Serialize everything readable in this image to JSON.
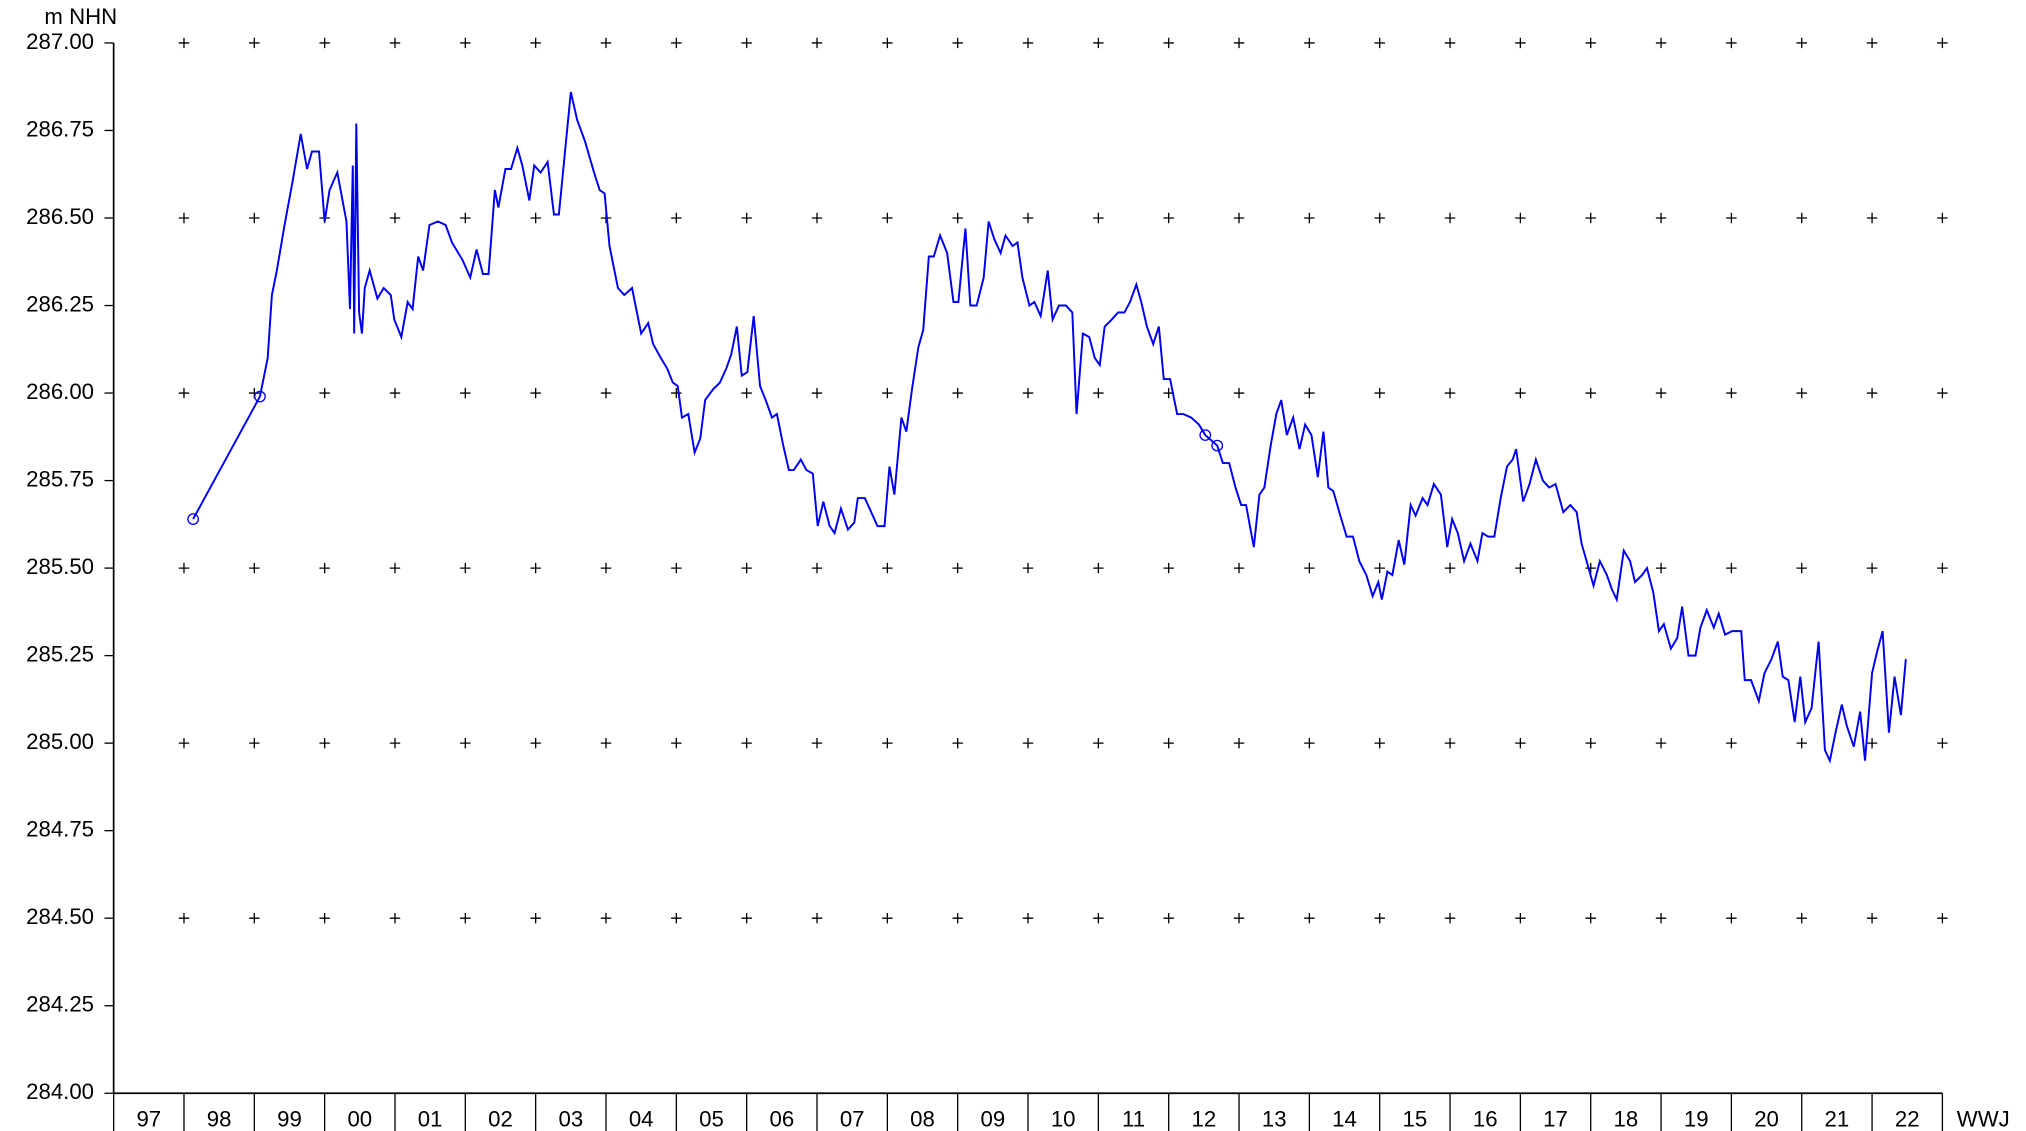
{
  "chart_data": {
    "type": "line",
    "y_label": "m NHN",
    "x_label": "WWJ",
    "categories": [
      "97",
      "98",
      "99",
      "00",
      "01",
      "02",
      "03",
      "04",
      "05",
      "06",
      "07",
      "08",
      "09",
      "10",
      "11",
      "12",
      "13",
      "14",
      "15",
      "16",
      "17",
      "18",
      "19",
      "20",
      "21",
      "22"
    ],
    "xlim": [
      1997,
      2023
    ],
    "ylim": [
      284,
      287
    ],
    "yticks": [
      {
        "value": 284,
        "label": "284.00"
      },
      {
        "value": 284.25,
        "label": "284.25"
      },
      {
        "value": 284.5,
        "label": "284.50"
      },
      {
        "value": 284.75,
        "label": "284.75"
      },
      {
        "value": 285,
        "label": "285.00"
      },
      {
        "value": 285.25,
        "label": "285.25"
      },
      {
        "value": 285.5,
        "label": "285.50"
      },
      {
        "value": 285.75,
        "label": "285.75"
      },
      {
        "value": 286,
        "label": "286.00"
      },
      {
        "value": 286.25,
        "label": "286.25"
      },
      {
        "value": 286.5,
        "label": "286.50"
      },
      {
        "value": 286.75,
        "label": "286.75"
      },
      {
        "value": 287,
        "label": "287.00"
      }
    ],
    "grid": true,
    "color": "#0000ee",
    "highlighted_points": {
      "x": [
        1998.13,
        1999.08,
        2012.52,
        2012.69
      ],
      "values": [
        285.64,
        285.99,
        285.88,
        285.85
      ]
    },
    "x": [
      1998.13,
      1999.08,
      1999.19,
      1999.25,
      1999.32,
      1999.43,
      1999.54,
      1999.66,
      1999.75,
      1999.82,
      1999.92,
      2000.0,
      2000.07,
      2000.18,
      2000.31,
      2000.36,
      2000.4,
      2000.42,
      2000.45,
      2000.49,
      2000.53,
      2000.57,
      2000.64,
      2000.75,
      2000.84,
      2000.94,
      2000.99,
      2001.09,
      2001.18,
      2001.25,
      2001.33,
      2001.4,
      2001.49,
      2001.61,
      2001.72,
      2001.81,
      2001.96,
      2002.07,
      2002.16,
      2002.25,
      2002.33,
      2002.42,
      2002.47,
      2002.57,
      2002.65,
      2002.74,
      2002.81,
      2002.91,
      2002.98,
      2003.07,
      2003.17,
      2003.26,
      2003.33,
      2003.5,
      2003.59,
      2003.7,
      2003.83,
      2003.91,
      2003.98,
      2004.05,
      2004.17,
      2004.26,
      2004.37,
      2004.5,
      2004.6,
      2004.67,
      2004.78,
      2004.87,
      2004.95,
      2005.02,
      2005.08,
      2005.17,
      2005.26,
      2005.34,
      2005.41,
      2005.52,
      2005.62,
      2005.71,
      2005.78,
      2005.86,
      2005.93,
      2006.01,
      2006.1,
      2006.19,
      2006.27,
      2006.36,
      2006.43,
      2006.52,
      2006.6,
      2006.67,
      2006.77,
      2006.85,
      2006.94,
      2007.01,
      2007.09,
      2007.18,
      2007.25,
      2007.34,
      2007.44,
      2007.53,
      2007.58,
      2007.68,
      2007.77,
      2007.86,
      2007.96,
      2008.03,
      2008.1,
      2008.2,
      2008.27,
      2008.35,
      2008.44,
      2008.51,
      2008.59,
      2008.66,
      2008.75,
      2008.85,
      2008.94,
      2009.01,
      2009.11,
      2009.18,
      2009.27,
      2009.37,
      2009.44,
      2009.52,
      2009.61,
      2009.68,
      2009.78,
      2009.85,
      2009.92,
      2010.02,
      2010.09,
      2010.18,
      2010.28,
      2010.35,
      2010.44,
      2010.54,
      2010.63,
      2010.69,
      2010.78,
      2010.87,
      2010.95,
      2011.02,
      2011.09,
      2011.19,
      2011.28,
      2011.37,
      2011.45,
      2011.54,
      2011.61,
      2011.69,
      2011.78,
      2011.86,
      2011.93,
      2012.02,
      2012.12,
      2012.21,
      2012.32,
      2012.43,
      2012.52,
      2012.69,
      2012.77,
      2012.86,
      2012.95,
      2013.03,
      2013.1,
      2013.21,
      2013.29,
      2013.36,
      2013.45,
      2013.53,
      2013.6,
      2013.68,
      2013.77,
      2013.86,
      2013.94,
      2014.03,
      2014.12,
      2014.2,
      2014.27,
      2014.34,
      2014.44,
      2014.53,
      2014.62,
      2014.71,
      2014.81,
      2014.9,
      2014.98,
      2015.03,
      2015.11,
      2015.18,
      2015.27,
      2015.35,
      2015.44,
      2015.51,
      2015.61,
      2015.68,
      2015.77,
      2015.87,
      2015.96,
      2016.03,
      2016.11,
      2016.2,
      2016.29,
      2016.39,
      2016.46,
      2016.54,
      2016.63,
      2016.72,
      2016.81,
      2016.89,
      2016.94,
      2017.04,
      2017.13,
      2017.22,
      2017.32,
      2017.41,
      2017.5,
      2017.61,
      2017.71,
      2017.8,
      2017.87,
      2017.97,
      2018.04,
      2018.13,
      2018.23,
      2018.3,
      2018.37,
      2018.47,
      2018.56,
      2018.63,
      2018.73,
      2018.8,
      2018.89,
      2018.97,
      2019.04,
      2019.14,
      2019.23,
      2019.3,
      2019.39,
      2019.49,
      2019.56,
      2019.65,
      2019.75,
      2019.82,
      2019.91,
      2020.01,
      2020.08,
      2020.14,
      2020.19,
      2020.28,
      2020.39,
      2020.47,
      2020.57,
      2020.66,
      2020.73,
      2020.81,
      2020.9,
      2020.98,
      2021.05,
      2021.14,
      2021.24,
      2021.33,
      2021.4,
      2021.48,
      2021.57,
      2021.64,
      2021.74,
      2021.83,
      2021.9,
      2022.0,
      2022.07,
      2022.15,
      2022.24,
      2022.32,
      2022.41,
      2022.48
    ],
    "values": [
      285.64,
      285.99,
      286.1,
      286.28,
      286.35,
      286.48,
      286.6,
      286.74,
      286.64,
      286.69,
      286.69,
      286.49,
      286.58,
      286.63,
      286.49,
      286.24,
      286.65,
      286.17,
      286.77,
      286.23,
      286.17,
      286.3,
      286.35,
      286.27,
      286.3,
      286.28,
      286.21,
      286.16,
      286.26,
      286.24,
      286.39,
      286.35,
      286.48,
      286.49,
      286.48,
      286.43,
      286.38,
      286.33,
      286.41,
      286.34,
      286.34,
      286.58,
      286.53,
      286.64,
      286.64,
      286.7,
      286.65,
      286.55,
      286.65,
      286.63,
      286.66,
      286.51,
      286.51,
      286.86,
      286.78,
      286.72,
      286.63,
      286.58,
      286.57,
      286.42,
      286.3,
      286.28,
      286.3,
      286.17,
      286.2,
      286.14,
      286.1,
      286.07,
      286.03,
      286.02,
      285.93,
      285.94,
      285.83,
      285.87,
      285.98,
      286.01,
      286.03,
      286.07,
      286.11,
      286.19,
      286.05,
      286.06,
      286.22,
      286.02,
      285.98,
      285.93,
      285.94,
      285.85,
      285.78,
      285.78,
      285.81,
      285.78,
      285.77,
      285.62,
      285.69,
      285.62,
      285.6,
      285.67,
      285.61,
      285.63,
      285.7,
      285.7,
      285.66,
      285.62,
      285.62,
      285.79,
      285.71,
      285.93,
      285.89,
      286.01,
      286.13,
      286.18,
      286.39,
      286.39,
      286.45,
      286.4,
      286.26,
      286.26,
      286.47,
      286.25,
      286.25,
      286.33,
      286.49,
      286.44,
      286.4,
      286.45,
      286.42,
      286.43,
      286.33,
      286.25,
      286.26,
      286.22,
      286.35,
      286.21,
      286.25,
      286.25,
      286.23,
      285.94,
      286.17,
      286.16,
      286.1,
      286.08,
      286.19,
      286.21,
      286.23,
      286.23,
      286.26,
      286.31,
      286.26,
      286.19,
      286.14,
      286.19,
      286.04,
      286.04,
      285.94,
      285.94,
      285.93,
      285.91,
      285.88,
      285.85,
      285.8,
      285.8,
      285.73,
      285.68,
      285.68,
      285.56,
      285.71,
      285.73,
      285.85,
      285.94,
      285.98,
      285.88,
      285.93,
      285.84,
      285.91,
      285.88,
      285.76,
      285.89,
      285.73,
      285.72,
      285.65,
      285.59,
      285.59,
      285.52,
      285.48,
      285.42,
      285.46,
      285.41,
      285.49,
      285.48,
      285.58,
      285.51,
      285.68,
      285.65,
      285.7,
      285.68,
      285.74,
      285.71,
      285.56,
      285.64,
      285.6,
      285.52,
      285.57,
      285.52,
      285.6,
      285.59,
      285.59,
      285.7,
      285.79,
      285.81,
      285.84,
      285.69,
      285.74,
      285.81,
      285.75,
      285.73,
      285.74,
      285.66,
      285.68,
      285.66,
      285.57,
      285.5,
      285.45,
      285.52,
      285.48,
      285.44,
      285.41,
      285.55,
      285.52,
      285.46,
      285.48,
      285.5,
      285.43,
      285.32,
      285.34,
      285.27,
      285.3,
      285.39,
      285.25,
      285.25,
      285.33,
      285.38,
      285.33,
      285.37,
      285.31,
      285.32,
      285.32,
      285.32,
      285.18,
      285.18,
      285.12,
      285.2,
      285.24,
      285.29,
      285.19,
      285.18,
      285.06,
      285.19,
      285.06,
      285.1,
      285.29,
      284.98,
      284.95,
      285.03,
      285.11,
      285.05,
      284.99,
      285.09,
      284.95,
      285.2,
      285.26,
      285.32,
      285.03,
      285.19,
      285.08,
      285.24
    ]
  }
}
